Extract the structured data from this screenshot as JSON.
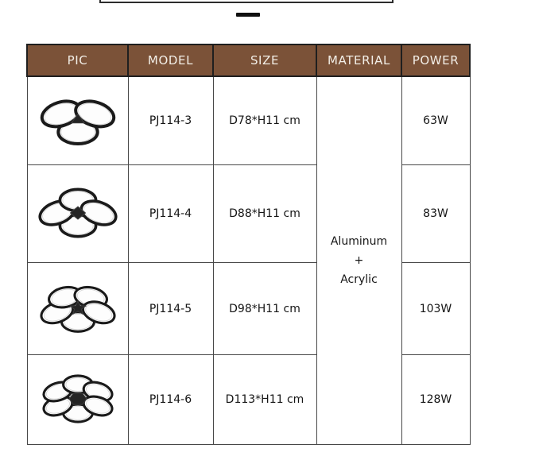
{
  "page": {
    "background": "#ffffff"
  },
  "decor": {
    "frame_border_color": "#2c2c2c",
    "dash_color": "#101010"
  },
  "table": {
    "header_bg": "#7b5238",
    "header_text_color": "#f2eee7",
    "grid_color": "#484848",
    "columns": [
      "PIC",
      "MODEL",
      "SIZE",
      "MATERIAL",
      "POWER"
    ],
    "material": {
      "line1": "Aluminum",
      "line2": "+",
      "line3": "Acrylic"
    },
    "products": [
      {
        "model": "PJ114-3",
        "size": "D78*H11 cm",
        "power": "63W",
        "pic": {
          "rings": 3,
          "center_shape": "triangle",
          "label": "3-ring LED ceiling lamp"
        }
      },
      {
        "model": "PJ114-4",
        "size": "D88*H11 cm",
        "power": "83W",
        "pic": {
          "rings": 4,
          "center_shape": "diamond",
          "label": "4-ring LED ceiling lamp"
        }
      },
      {
        "model": "PJ114-5",
        "size": "D98*H11 cm",
        "power": "103W",
        "pic": {
          "rings": 5,
          "center_shape": "star",
          "label": "5-ring LED ceiling lamp"
        }
      },
      {
        "model": "PJ114-6",
        "size": "D113*H11 cm",
        "power": "128W",
        "pic": {
          "rings": 6,
          "center_shape": "hexagon",
          "label": "6-ring LED ceiling lamp"
        }
      }
    ]
  }
}
